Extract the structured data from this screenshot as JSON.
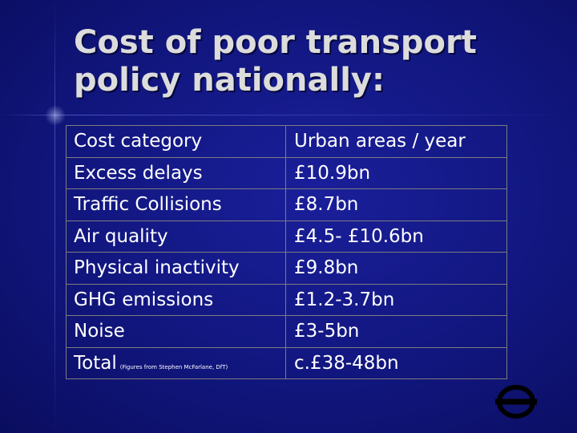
{
  "slide": {
    "title_line1": "Cost of poor transport",
    "title_line2": "policy nationally:",
    "table": {
      "header": {
        "category": "Cost category",
        "value": "Urban areas / year"
      },
      "rows": [
        {
          "category": "Excess delays",
          "value": "£10.9bn"
        },
        {
          "category": "Traffic Collisions",
          "value": "£8.7bn"
        },
        {
          "category": "Air quality",
          "value": "£4.5- £10.6bn"
        },
        {
          "category": "Physical inactivity",
          "value": "£9.8bn"
        },
        {
          "category": "GHG emissions",
          "value": "£1.2-3.7bn"
        },
        {
          "category": "Noise",
          "value": "£3-5bn"
        }
      ],
      "total": {
        "category": "Total",
        "note": "(Figures from Stephen McFarlane, DfT)",
        "value": "c.£38-48bn"
      }
    },
    "logo_icon": "roundel-icon"
  }
}
